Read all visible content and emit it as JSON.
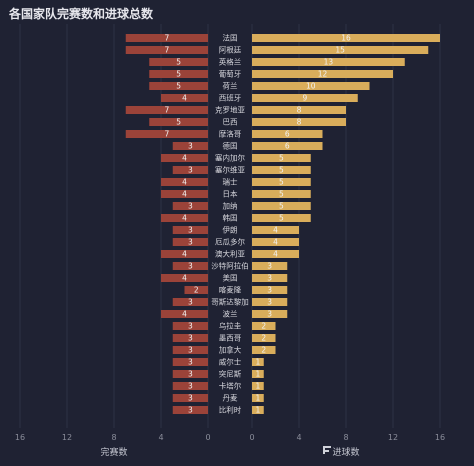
{
  "title": "各国家队完赛数和进球总数",
  "colors": {
    "background": "#1f2233",
    "left_bar": "#9b4339",
    "right_bar": "#d9ad5b",
    "grid": "#2e3245"
  },
  "chart_data": {
    "type": "bar",
    "layout": "butterfly",
    "title": "各国家队完赛数和进球总数",
    "categories": [
      "法国",
      "阿根廷",
      "英格兰",
      "葡萄牙",
      "荷兰",
      "西班牙",
      "克罗地亚",
      "巴西",
      "摩洛哥",
      "德国",
      "塞内加尔",
      "塞尔维亚",
      "瑞士",
      "日本",
      "加纳",
      "韩国",
      "伊朗",
      "厄瓜多尔",
      "澳大利亚",
      "沙特阿拉伯",
      "美国",
      "喀麦隆",
      "哥斯达黎加",
      "波兰",
      "乌拉圭",
      "墨西哥",
      "加拿大",
      "威尔士",
      "突尼斯",
      "卡塔尔",
      "丹麦",
      "比利时"
    ],
    "series": [
      {
        "name": "完赛数",
        "side": "left",
        "values": [
          7,
          7,
          5,
          5,
          5,
          4,
          7,
          5,
          7,
          3,
          4,
          3,
          4,
          4,
          3,
          4,
          3,
          3,
          4,
          3,
          4,
          2,
          3,
          4,
          3,
          3,
          3,
          3,
          3,
          3,
          3,
          3
        ]
      },
      {
        "name": "进球数",
        "side": "right",
        "values": [
          16,
          15,
          13,
          12,
          10,
          9,
          8,
          8,
          6,
          6,
          5,
          5,
          5,
          5,
          5,
          5,
          4,
          4,
          4,
          3,
          3,
          3,
          3,
          3,
          2,
          2,
          2,
          1,
          1,
          1,
          1,
          1
        ]
      }
    ],
    "left_axis": {
      "xlabel": "完赛数",
      "ticks": [
        16,
        12,
        8,
        4,
        0
      ],
      "xlim": [
        16,
        0
      ]
    },
    "right_axis": {
      "xlabel": "进球数",
      "ticks": [
        0,
        4,
        8,
        12,
        16
      ],
      "xlim": [
        0,
        16
      ]
    }
  }
}
